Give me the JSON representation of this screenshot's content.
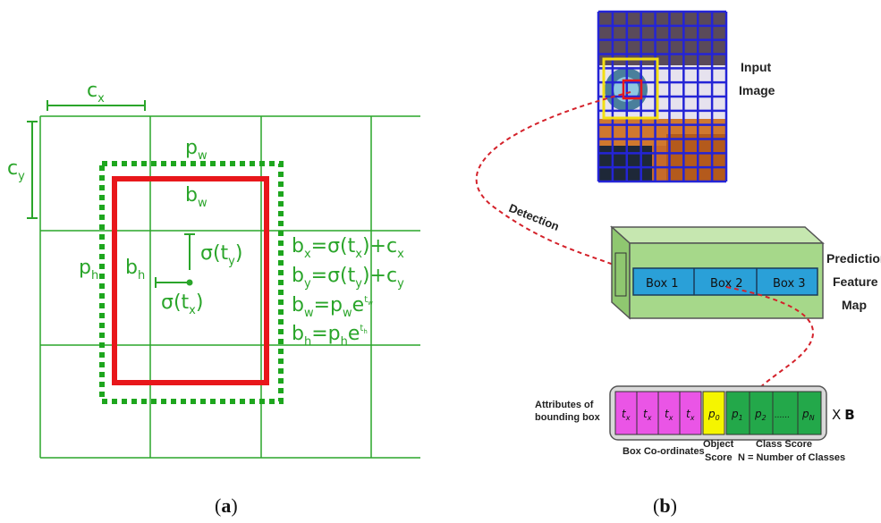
{
  "panel_a": {
    "cx_label": "c",
    "cx_sub": "x",
    "cy_label": "c",
    "cy_sub": "y",
    "pw_label": "p",
    "pw_sub": "w",
    "ph_label": "p",
    "ph_sub": "h",
    "bw_label": "b",
    "bw_sub": "w",
    "bh_label": "b",
    "bh_sub": "h",
    "sig_ty": "σ(t",
    "sig_ty_sub": "y",
    "sig_tx": "σ(t",
    "sig_tx_sub": "x",
    "close_paren": ")",
    "eq1": "b",
    "eq1_sub": "x",
    "eq1_rhs": "=σ(t",
    "eq1_rhs_sub": "x",
    "eq1_tail": ")+c",
    "eq1_tail_sub": "x",
    "eq2": "b",
    "eq2_sub": "y",
    "eq2_rhs": "=σ(t",
    "eq2_rhs_sub": "y",
    "eq2_tail": ")+c",
    "eq2_tail_sub": "y",
    "eq3": "b",
    "eq3_sub": "w",
    "eq3_rhs": "=p",
    "eq3_rhs_sub": "w",
    "eq3_tail": "e",
    "eq3_exp": "t",
    "eq3_exp_sub": "w",
    "eq4": "b",
    "eq4_sub": "h",
    "eq4_rhs": "=p",
    "eq4_rhs_sub": "h",
    "eq4_tail": "e",
    "eq4_exp": "t",
    "eq4_exp_sub": "h",
    "caption_open": "(",
    "caption_letter": "a",
    "caption_close": ")",
    "colors": {
      "grid": "#2aa52a",
      "box": "#e8171b",
      "prior": "#1ea61e"
    }
  },
  "panel_b": {
    "input_image_line1": "Input",
    "input_image_line2": "Image",
    "detection_label": "Detection",
    "prediction_line1": "Prediction",
    "prediction_line2": "Feature",
    "prediction_line3": "Map",
    "boxes": [
      "Box 1",
      "Box 2",
      "Box 3"
    ],
    "attributes_line1": "Attributes of",
    "attributes_line2": "bounding box",
    "tx_cells": [
      "t",
      "t",
      "t",
      "t"
    ],
    "tx_sub": "x",
    "p0": "p",
    "p0_sub": "0",
    "class_cells": [
      "p",
      "p",
      "......",
      "p"
    ],
    "class_subs": [
      "1",
      "2",
      "",
      "N"
    ],
    "times_b_x": "X",
    "times_b_b": "B",
    "box_coordinates": "Box Co-ordinates",
    "object_score_line1": "Object",
    "object_score_line2": "Score",
    "class_score_line1": "Class Score",
    "class_score_line2": "N = Number of Classes",
    "caption_open": "(",
    "caption_letter": "b",
    "caption_close": ")",
    "colors": {
      "grid": "#2424d6",
      "feature_box": "#a6d88a",
      "strip": "#2aa0d8",
      "magenta": "#ea55e6",
      "yellow": "#f5f500",
      "green": "#23a84a",
      "dashed": "#d4212a"
    }
  }
}
